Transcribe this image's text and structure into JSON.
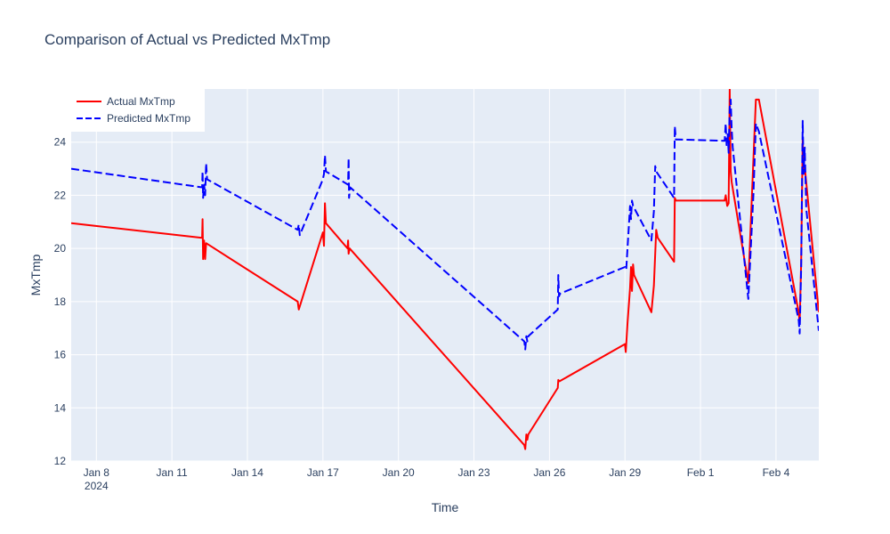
{
  "chart_data": {
    "type": "line",
    "title": "Comparison of Actual vs Predicted MxTmp",
    "xlabel": "Time",
    "ylabel": "MxTmp",
    "x_ticks": [
      {
        "x": 8,
        "label": "Jan 8",
        "sub": "2024"
      },
      {
        "x": 11,
        "label": "Jan 11"
      },
      {
        "x": 14,
        "label": "Jan 14"
      },
      {
        "x": 17,
        "label": "Jan 17"
      },
      {
        "x": 20,
        "label": "Jan 20"
      },
      {
        "x": 23,
        "label": "Jan 23"
      },
      {
        "x": 26,
        "label": "Jan 26"
      },
      {
        "x": 29,
        "label": "Jan 29"
      },
      {
        "x": 32,
        "label": "Feb 1"
      },
      {
        "x": 35,
        "label": "Feb 4"
      }
    ],
    "y_ticks": [
      12,
      14,
      16,
      18,
      20,
      22,
      24
    ],
    "xlim": [
      7.0,
      36.7
    ],
    "ylim": [
      12,
      26
    ],
    "legend_position": "top-left",
    "grid": true,
    "colors": {
      "plot_bg": "#e5ecf6",
      "grid": "#ffffff",
      "text": "#2a3f5f"
    },
    "series": [
      {
        "name": "Actual MxTmp",
        "color": "#ff0000",
        "dash": "solid",
        "points": [
          [
            7.0,
            20.95
          ],
          [
            12.2,
            20.4
          ],
          [
            12.22,
            21.1
          ],
          [
            12.24,
            19.6
          ],
          [
            12.28,
            20.3
          ],
          [
            12.32,
            19.6
          ],
          [
            12.36,
            20.2
          ],
          [
            16.0,
            18.0
          ],
          [
            16.04,
            17.7
          ],
          [
            17.0,
            20.6
          ],
          [
            17.04,
            20.1
          ],
          [
            17.08,
            21.7
          ],
          [
            17.12,
            20.95
          ],
          [
            17.98,
            20.0
          ],
          [
            18.0,
            20.3
          ],
          [
            18.02,
            19.8
          ],
          [
            18.06,
            20.0
          ],
          [
            25.0,
            12.6
          ],
          [
            25.04,
            12.45
          ],
          [
            25.08,
            13.0
          ],
          [
            25.12,
            12.8
          ],
          [
            25.16,
            13.0
          ],
          [
            26.33,
            14.75
          ],
          [
            26.35,
            15.05
          ],
          [
            26.4,
            15.0
          ],
          [
            29.0,
            16.4
          ],
          [
            29.03,
            16.1
          ],
          [
            29.1,
            17.2
          ],
          [
            29.2,
            18.5
          ],
          [
            29.24,
            19.3
          ],
          [
            29.28,
            18.4
          ],
          [
            29.32,
            19.4
          ],
          [
            29.36,
            19.0
          ],
          [
            30.05,
            17.6
          ],
          [
            30.15,
            18.6
          ],
          [
            30.2,
            19.8
          ],
          [
            30.24,
            20.7
          ],
          [
            30.3,
            20.4
          ],
          [
            30.95,
            19.5
          ],
          [
            30.98,
            21.9
          ],
          [
            31.02,
            21.8
          ],
          [
            32.96,
            21.8
          ],
          [
            33.0,
            22.0
          ],
          [
            33.06,
            21.6
          ],
          [
            33.12,
            21.7
          ],
          [
            33.16,
            26.0
          ],
          [
            33.2,
            22.9
          ],
          [
            33.24,
            22.5
          ],
          [
            33.9,
            18.7
          ],
          [
            34.2,
            25.6
          ],
          [
            34.32,
            25.6
          ],
          [
            35.9,
            17.6
          ],
          [
            35.94,
            17.2
          ],
          [
            36.0,
            19.5
          ],
          [
            36.06,
            24.1
          ],
          [
            36.1,
            23.0
          ],
          [
            36.16,
            22.9
          ],
          [
            36.7,
            17.6
          ]
        ]
      },
      {
        "name": "Predicted MxTmp",
        "color": "#0000ff",
        "dash": "dashed",
        "points": [
          [
            7.0,
            23.0
          ],
          [
            12.2,
            22.3
          ],
          [
            12.22,
            22.9
          ],
          [
            12.24,
            21.9
          ],
          [
            12.28,
            22.4
          ],
          [
            12.32,
            22.0
          ],
          [
            12.36,
            23.2
          ],
          [
            12.4,
            22.6
          ],
          [
            16.0,
            20.7
          ],
          [
            16.04,
            20.9
          ],
          [
            16.08,
            20.5
          ],
          [
            17.0,
            22.6
          ],
          [
            17.04,
            22.8
          ],
          [
            17.08,
            23.5
          ],
          [
            17.12,
            22.9
          ],
          [
            18.0,
            22.4
          ],
          [
            18.02,
            23.4
          ],
          [
            18.04,
            21.9
          ],
          [
            18.08,
            22.3
          ],
          [
            25.0,
            16.5
          ],
          [
            25.04,
            16.2
          ],
          [
            25.08,
            16.7
          ],
          [
            25.12,
            16.5
          ],
          [
            25.16,
            16.7
          ],
          [
            26.33,
            17.7
          ],
          [
            26.35,
            19.0
          ],
          [
            26.38,
            18.2
          ],
          [
            26.42,
            18.3
          ],
          [
            29.0,
            19.3
          ],
          [
            29.05,
            19.2
          ],
          [
            29.15,
            20.8
          ],
          [
            29.2,
            21.6
          ],
          [
            29.24,
            21.1
          ],
          [
            29.28,
            21.8
          ],
          [
            29.32,
            21.6
          ],
          [
            30.05,
            20.3
          ],
          [
            30.15,
            21.4
          ],
          [
            30.2,
            23.1
          ],
          [
            30.24,
            22.9
          ],
          [
            30.95,
            21.9
          ],
          [
            30.98,
            24.6
          ],
          [
            31.02,
            24.1
          ],
          [
            32.96,
            24.05
          ],
          [
            33.0,
            24.7
          ],
          [
            33.04,
            23.8
          ],
          [
            33.08,
            24.3
          ],
          [
            33.12,
            23.6
          ],
          [
            33.16,
            25.3
          ],
          [
            33.2,
            25.6
          ],
          [
            33.24,
            24.5
          ],
          [
            33.28,
            23.8
          ],
          [
            33.9,
            18.1
          ],
          [
            34.1,
            22.0
          ],
          [
            34.2,
            24.7
          ],
          [
            34.32,
            24.4
          ],
          [
            35.9,
            17.3
          ],
          [
            35.94,
            16.8
          ],
          [
            36.0,
            19.3
          ],
          [
            36.06,
            24.8
          ],
          [
            36.1,
            22.8
          ],
          [
            36.14,
            23.8
          ],
          [
            36.2,
            21.5
          ],
          [
            36.7,
            16.9
          ]
        ]
      }
    ]
  }
}
